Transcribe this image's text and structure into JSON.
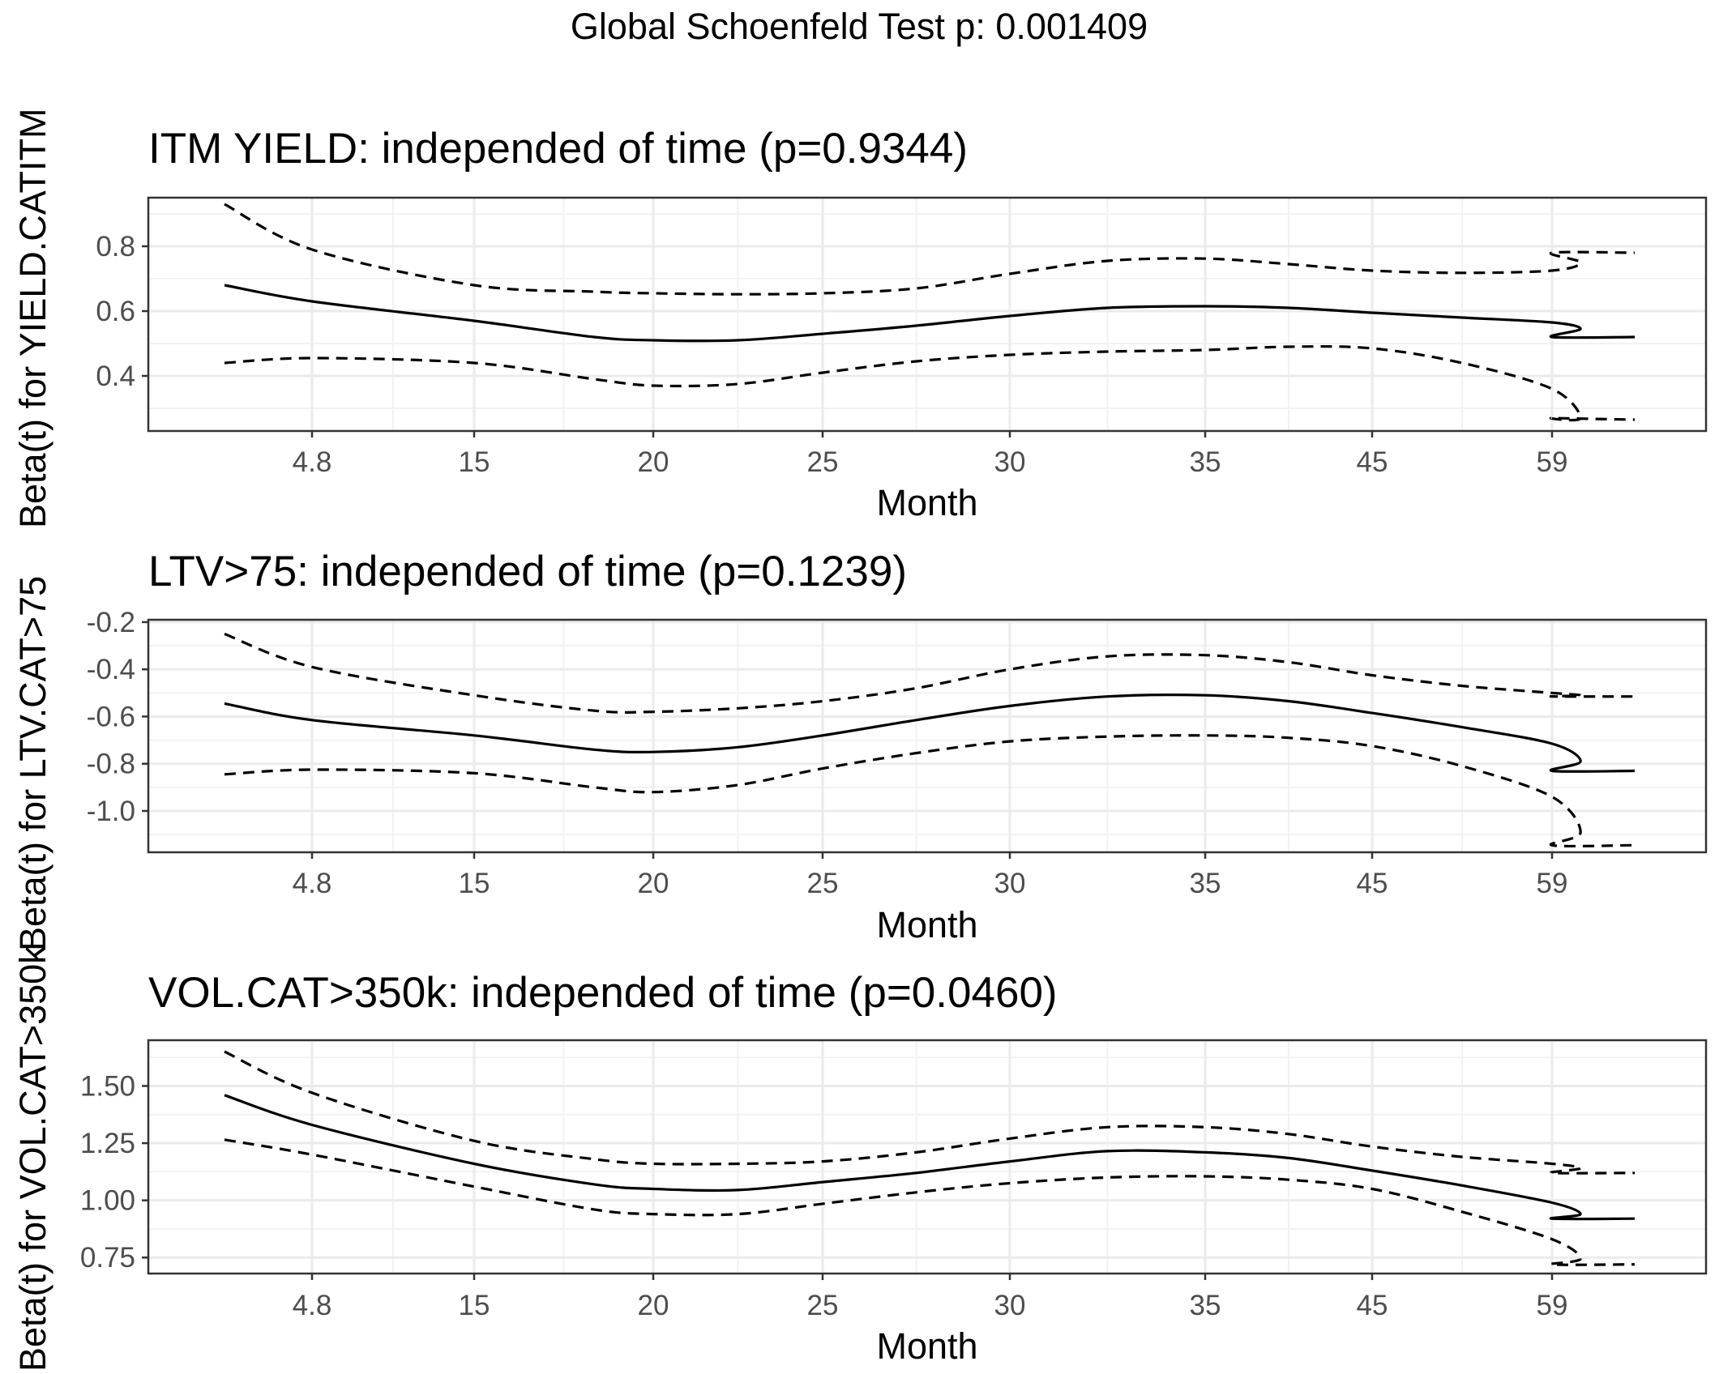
{
  "page_title": "Global Schoenfeld Test p: 0.001409",
  "y_axis_labels": [
    "Beta(t) for YIELD.CATITM",
    "Beta(t) for LTV.CAT>75",
    "Beta(t) for VOL.CAT>350k"
  ],
  "chart_data": [
    {
      "type": "line",
      "title": "ITM YIELD: independed of time (p=0.9344)",
      "xlabel": "Month",
      "ylabel": "Beta(t) for YIELD.CATITM",
      "x_tick_labels": [
        "4.8",
        "15",
        "20",
        "25",
        "30",
        "35",
        "45",
        "59"
      ],
      "y_tick_labels": [
        "0.4",
        "0.6",
        "0.8"
      ],
      "y_ticks": [
        0.4,
        0.6,
        0.8
      ],
      "ylim": [
        0.23,
        0.95
      ],
      "grid": true,
      "series": [
        {
          "style": "dashed",
          "x": [
            0,
            0.47,
            1,
            1.67,
            2,
            2.5,
            3,
            3.5,
            4,
            4.5,
            5,
            5.5,
            6,
            6.5,
            7,
            7.5,
            8,
            8.45
          ],
          "y": [
            0.93,
            0.79,
            0.68,
            0.66,
            0.655,
            0.652,
            0.655,
            0.67,
            0.715,
            0.755,
            0.762,
            0.745,
            0.725,
            0.718,
            0.725,
            0.75,
            0.78,
            0.78
          ]
        },
        {
          "style": "solid",
          "x": [
            0,
            0.47,
            1,
            1.67,
            2,
            2.5,
            3,
            3.5,
            4,
            4.5,
            5,
            5.5,
            6,
            6.5,
            7,
            7.5,
            8,
            8.45
          ],
          "y": [
            0.68,
            0.63,
            0.57,
            0.52,
            0.51,
            0.51,
            0.53,
            0.555,
            0.585,
            0.61,
            0.615,
            0.61,
            0.595,
            0.58,
            0.565,
            0.545,
            0.52,
            0.52
          ]
        },
        {
          "style": "dashed",
          "x": [
            0,
            0.47,
            1,
            1.67,
            2,
            2.5,
            3,
            3.5,
            4,
            4.5,
            5,
            5.5,
            6,
            6.5,
            7,
            7.5,
            8,
            8.45
          ],
          "y": [
            0.44,
            0.455,
            0.44,
            0.39,
            0.37,
            0.375,
            0.41,
            0.445,
            0.465,
            0.475,
            0.48,
            0.49,
            0.485,
            0.44,
            0.36,
            0.27,
            0.27,
            0.265
          ]
        }
      ]
    },
    {
      "type": "line",
      "title": "LTV>75: independed of time (p=0.1239)",
      "xlabel": "Month",
      "ylabel": "Beta(t) for LTV.CAT>75",
      "x_tick_labels": [
        "4.8",
        "15",
        "20",
        "25",
        "30",
        "35",
        "45",
        "59"
      ],
      "y_tick_labels": [
        "-1.0",
        "-0.8",
        "-0.6",
        "-0.4",
        "-0.2"
      ],
      "y_ticks": [
        -1.0,
        -0.8,
        -0.6,
        -0.4,
        -0.2
      ],
      "ylim": [
        -1.175,
        -0.19
      ],
      "grid": true,
      "series": [
        {
          "style": "dashed",
          "x": [
            0,
            0.47,
            1,
            1.67,
            2,
            2.5,
            3,
            3.5,
            4,
            4.5,
            5,
            5.5,
            6,
            6.5,
            7,
            7.5,
            8,
            8.45
          ],
          "y": [
            -0.25,
            -0.39,
            -0.51,
            -0.575,
            -0.58,
            -0.565,
            -0.535,
            -0.48,
            -0.4,
            -0.345,
            -0.34,
            -0.37,
            -0.425,
            -0.47,
            -0.5,
            -0.51,
            -0.515,
            -0.515
          ]
        },
        {
          "style": "solid",
          "x": [
            0,
            0.47,
            1,
            1.67,
            2,
            2.5,
            3,
            3.5,
            4,
            4.5,
            5,
            5.5,
            6,
            6.5,
            7,
            7.5,
            8,
            8.45
          ],
          "y": [
            -0.545,
            -0.615,
            -0.68,
            -0.74,
            -0.75,
            -0.73,
            -0.68,
            -0.615,
            -0.555,
            -0.515,
            -0.51,
            -0.535,
            -0.585,
            -0.645,
            -0.715,
            -0.79,
            -0.83,
            -0.83
          ]
        },
        {
          "style": "dashed",
          "x": [
            0,
            0.47,
            1,
            1.67,
            2,
            2.5,
            3,
            3.5,
            4,
            4.5,
            5,
            5.5,
            6,
            6.5,
            7,
            7.5,
            8,
            8.45
          ],
          "y": [
            -0.845,
            -0.825,
            -0.84,
            -0.9,
            -0.92,
            -0.89,
            -0.82,
            -0.755,
            -0.705,
            -0.685,
            -0.68,
            -0.69,
            -0.725,
            -0.81,
            -0.94,
            -1.09,
            -1.145,
            -1.145
          ]
        }
      ]
    },
    {
      "type": "line",
      "title": "VOL.CAT>350k: independed of time (p=0.0460)",
      "xlabel": "Month",
      "ylabel": "Beta(t) for VOL.CAT>350k",
      "x_tick_labels": [
        "4.8",
        "15",
        "20",
        "25",
        "30",
        "35",
        "45",
        "59"
      ],
      "y_tick_labels": [
        "0.75",
        "1.00",
        "1.25",
        "1.50"
      ],
      "y_ticks": [
        0.75,
        1.0,
        1.25,
        1.5
      ],
      "ylim": [
        0.68,
        1.7
      ],
      "grid": true,
      "series": [
        {
          "style": "dashed",
          "x": [
            0,
            0.47,
            1,
            1.67,
            2,
            2.5,
            3,
            3.5,
            4,
            4.5,
            5,
            5.5,
            6,
            6.5,
            7,
            7.5,
            8,
            8.45
          ],
          "y": [
            1.65,
            1.47,
            1.26,
            1.18,
            1.16,
            1.16,
            1.17,
            1.21,
            1.27,
            1.32,
            1.32,
            1.29,
            1.235,
            1.19,
            1.16,
            1.14,
            1.12,
            1.12
          ]
        },
        {
          "style": "solid",
          "x": [
            0,
            0.47,
            1,
            1.67,
            2,
            2.5,
            3,
            3.5,
            4,
            4.5,
            5,
            5.5,
            6,
            6.5,
            7,
            7.5,
            8,
            8.45
          ],
          "y": [
            1.46,
            1.33,
            1.16,
            1.07,
            1.05,
            1.045,
            1.08,
            1.12,
            1.17,
            1.215,
            1.21,
            1.185,
            1.13,
            1.065,
            0.99,
            0.94,
            0.92,
            0.92
          ]
        },
        {
          "style": "dashed",
          "x": [
            0,
            0.47,
            1,
            1.67,
            2,
            2.5,
            3,
            3.5,
            4,
            4.5,
            5,
            5.5,
            6,
            6.5,
            7,
            7.5,
            8,
            8.45
          ],
          "y": [
            1.265,
            1.2,
            1.06,
            0.96,
            0.94,
            0.94,
            0.985,
            1.035,
            1.075,
            1.1,
            1.105,
            1.09,
            1.05,
            0.95,
            0.83,
            0.745,
            0.72,
            0.72
          ]
        }
      ]
    }
  ]
}
